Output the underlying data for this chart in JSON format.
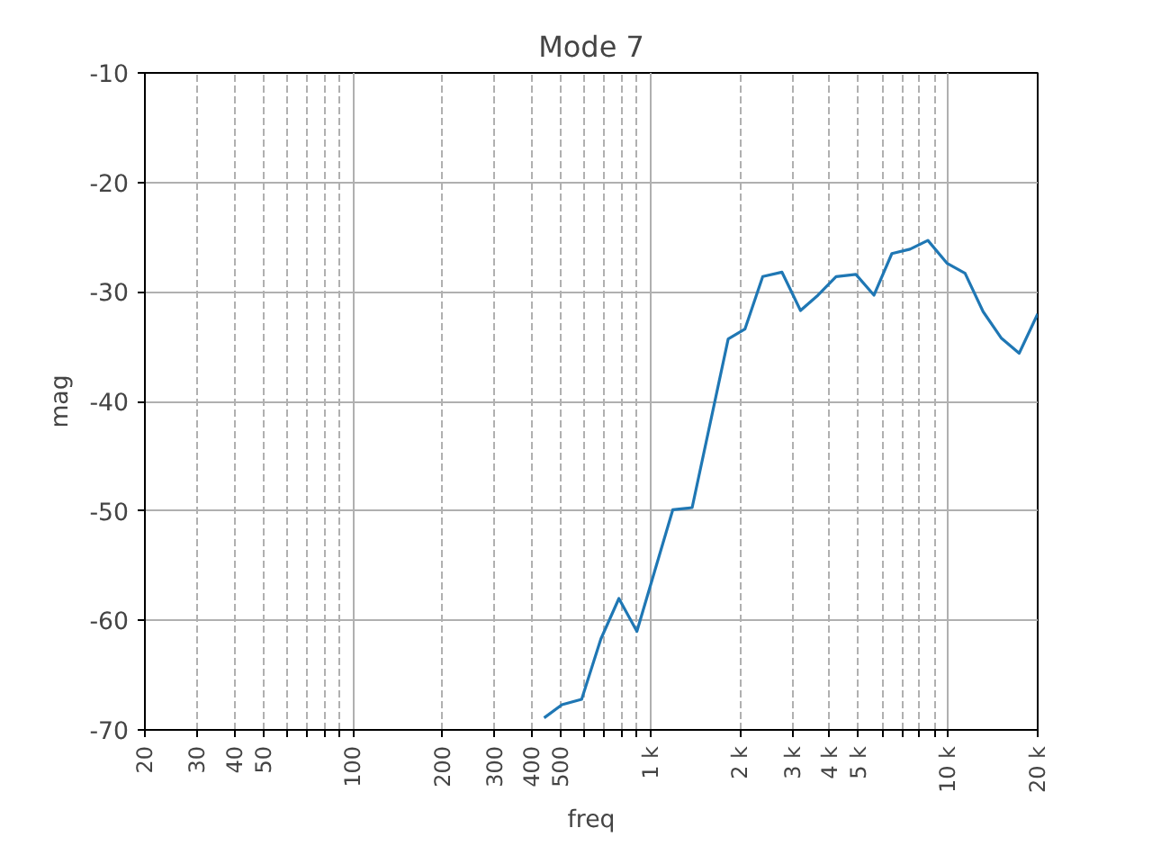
{
  "chart_data": {
    "type": "line",
    "title": "Mode 7",
    "xlabel": "freq",
    "ylabel": "mag",
    "log": "x",
    "grid": true,
    "xlim": [
      20,
      20000
    ],
    "ylim": [
      -70,
      -10
    ],
    "xticks": [
      20,
      30,
      40,
      50,
      {
        "value": 60,
        "label": null
      },
      {
        "value": 70,
        "label": null
      },
      {
        "value": 80,
        "label": null
      },
      {
        "value": 90,
        "label": null
      },
      100,
      200,
      300,
      400,
      500,
      {
        "value": 600,
        "label": null
      },
      {
        "value": 700,
        "label": null
      },
      {
        "value": 800,
        "label": null
      },
      {
        "value": 900,
        "label": null
      },
      {
        "value": 1000,
        "label": "1 k"
      },
      {
        "value": 2000,
        "label": "2 k"
      },
      {
        "value": 3000,
        "label": "3 k"
      },
      {
        "value": 4000,
        "label": "4 k"
      },
      {
        "value": 5000,
        "label": "5 k"
      },
      {
        "value": 6000,
        "label": null
      },
      {
        "value": 7000,
        "label": null
      },
      {
        "value": 8000,
        "label": null
      },
      {
        "value": 9000,
        "label": null
      },
      {
        "value": 10000,
        "label": "10 k"
      },
      {
        "value": 20000,
        "label": "20 k"
      }
    ],
    "yticks": [
      -70,
      -60,
      -50,
      -40,
      -30,
      -20,
      -10
    ],
    "series": [
      {
        "color": "#1f77b4",
        "x": [
          439,
          504,
          587,
          681,
          783,
          900,
          1188,
          1380,
          1824,
          2076,
          2383,
          2766,
          3192,
          3655,
          4203,
          4898,
          5636,
          6471,
          7447,
          8551,
          9931,
          11400,
          13110,
          15070,
          17330,
          20000
        ],
        "values": [
          -68.9,
          -67.7,
          -67.2,
          -61.7,
          -58.0,
          -61.0,
          -49.9,
          -49.7,
          -34.3,
          -33.4,
          -28.6,
          -28.2,
          -31.7,
          -30.3,
          -28.6,
          -28.4,
          -30.3,
          -26.5,
          -26.1,
          -25.3,
          -27.4,
          -28.3,
          -31.8,
          -34.2,
          -35.6,
          -32.0
        ]
      }
    ]
  }
}
